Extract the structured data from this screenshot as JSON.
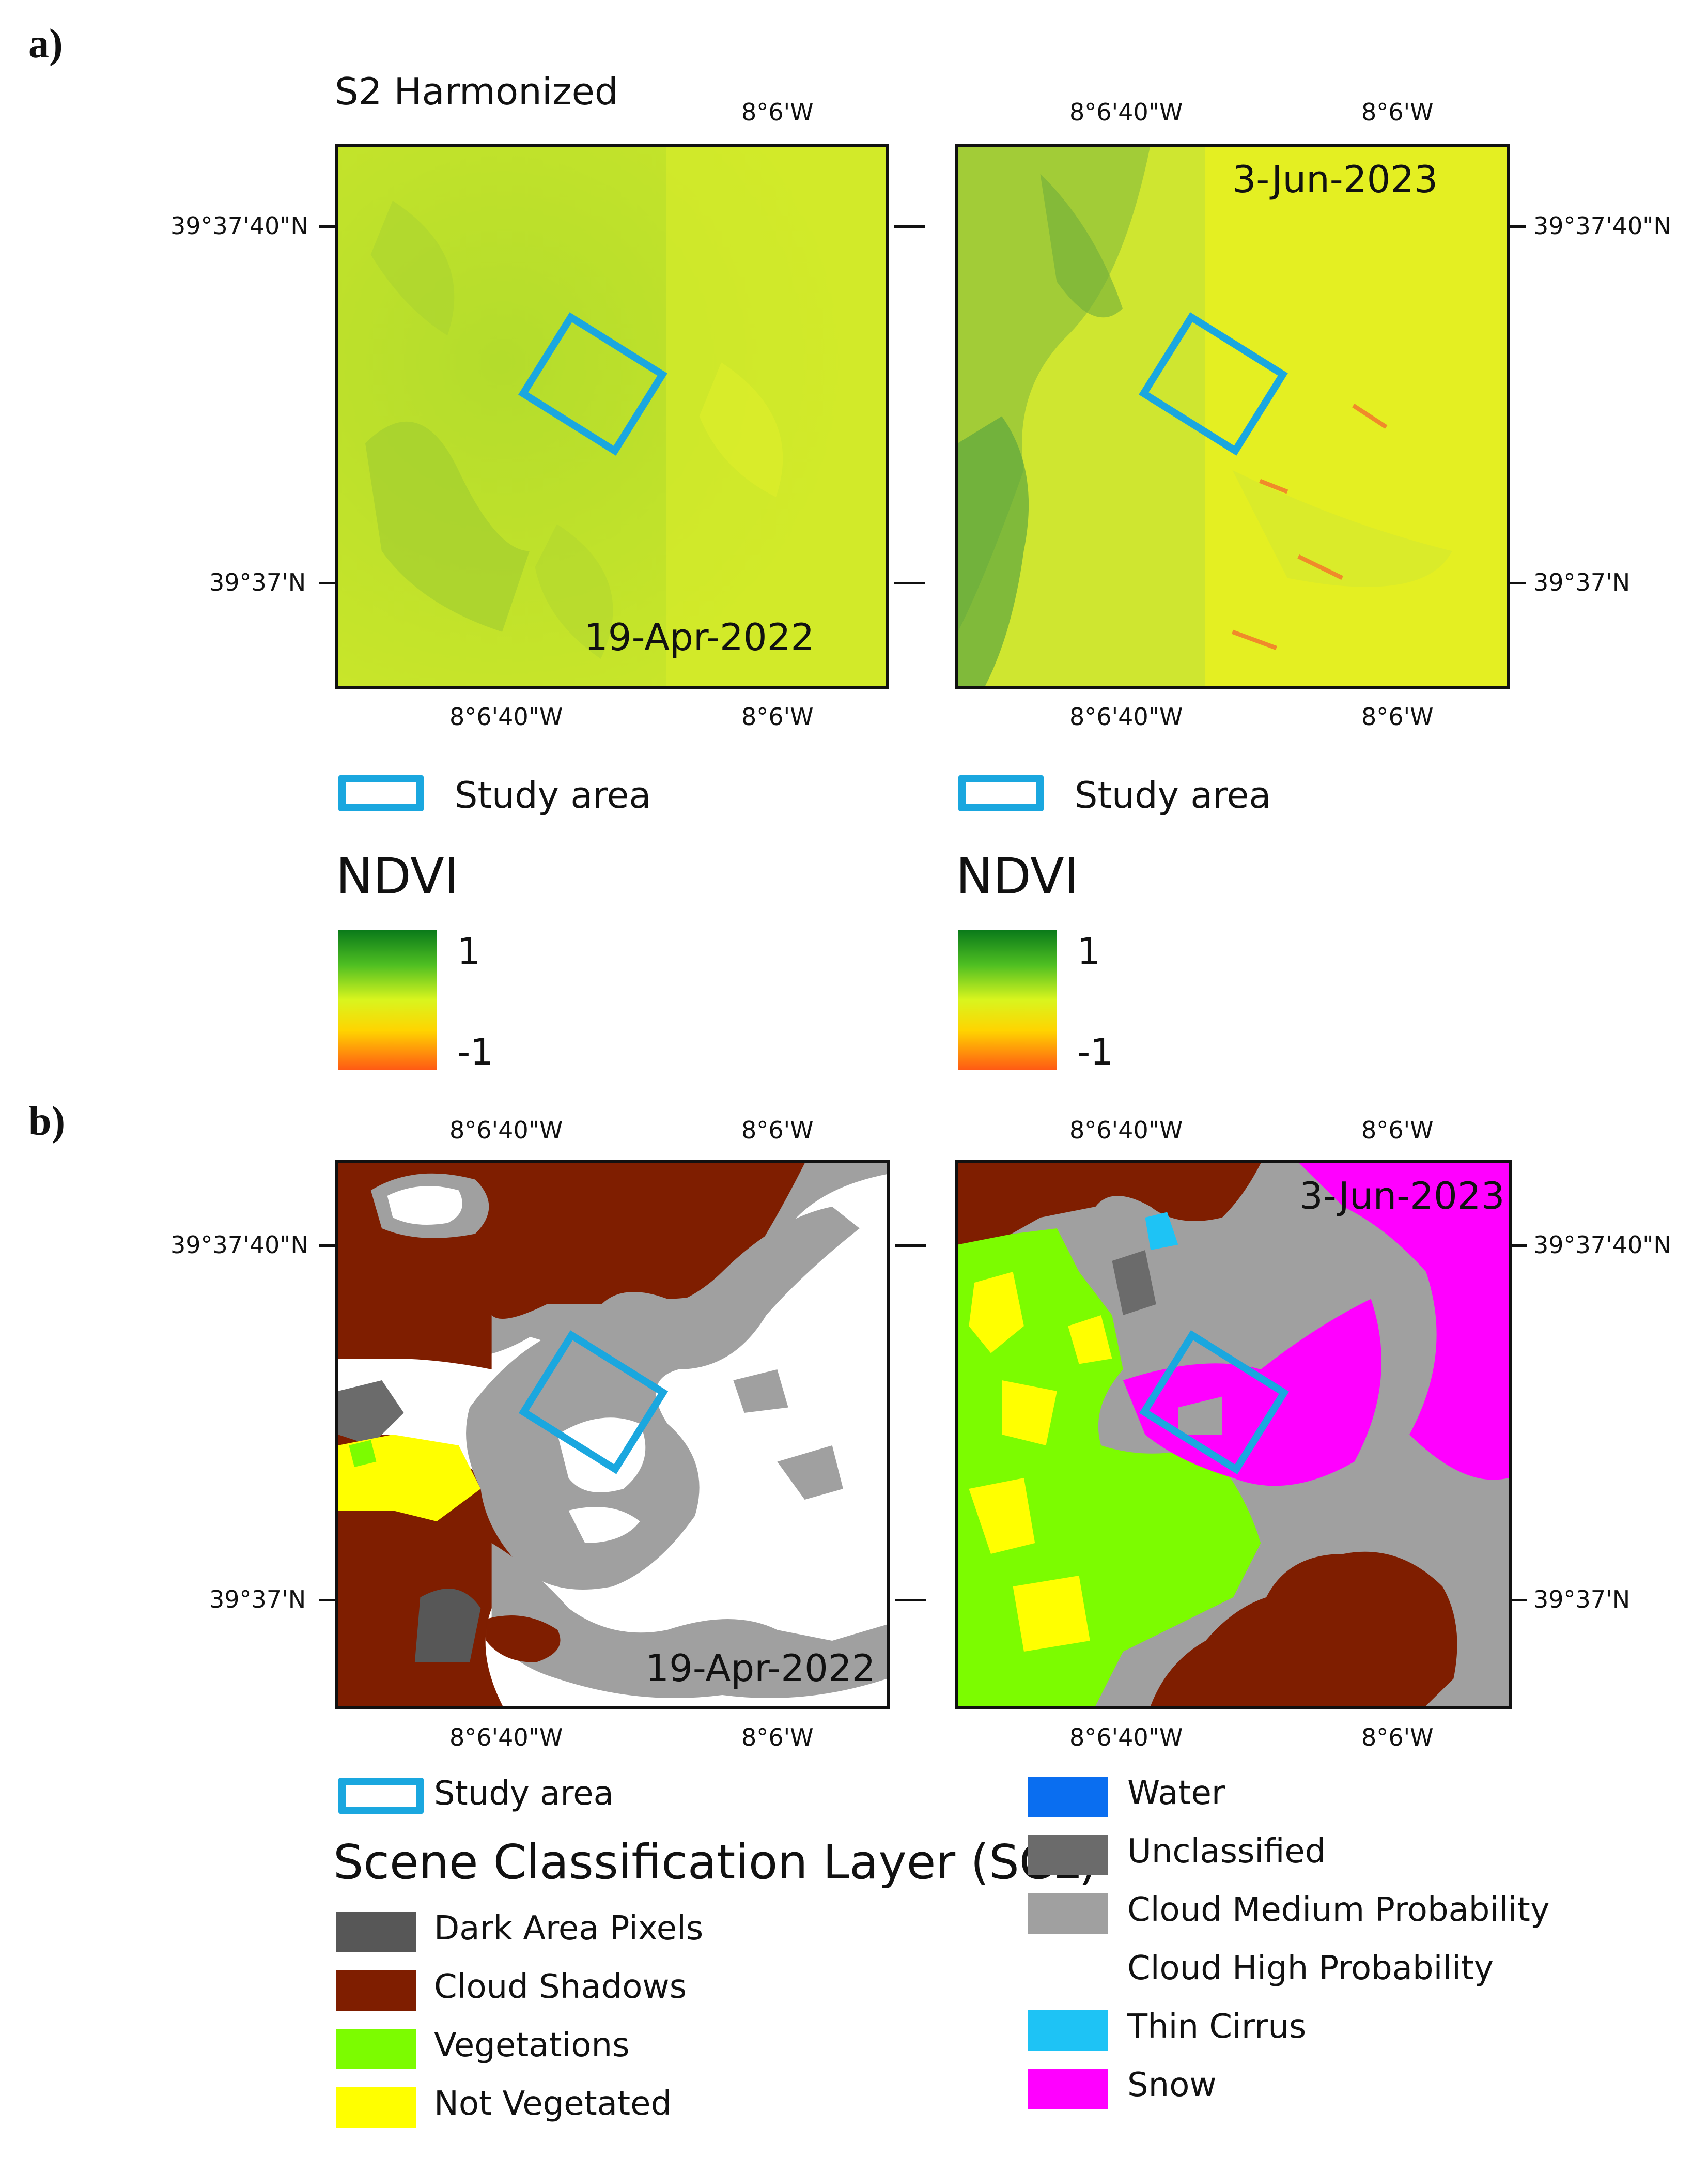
{
  "panel_a": {
    "label": "a)",
    "title": "S2 Harmonized",
    "left_map": {
      "date": "19-Apr-2022",
      "top_lon_ticks": [
        "8°6'W"
      ],
      "bottom_lon_ticks": [
        "8°6'40\"W",
        "8°6'W"
      ],
      "left_lat_ticks": [
        "39°37'40\"N",
        "39°37'N"
      ]
    },
    "right_map": {
      "date": "3-Jun-2023",
      "top_lon_ticks": [
        "8°6'40\"W",
        "8°6'W"
      ],
      "bottom_lon_ticks": [
        "8°6'40\"W",
        "8°6'W"
      ],
      "right_lat_ticks": [
        "39°37'40\"N",
        "39°37'N"
      ]
    },
    "legend": {
      "study_area": "Study area",
      "ndvi_title": "NDVI",
      "ndvi_max": "1",
      "ndvi_min": "-1"
    }
  },
  "panel_b": {
    "label": "b)",
    "left_map": {
      "date": "19-Apr-2022",
      "top_lon_ticks": [
        "8°6'40\"W",
        "8°6'W"
      ],
      "bottom_lon_ticks": [
        "8°6'40\"W",
        "8°6'W"
      ],
      "left_lat_ticks": [
        "39°37'40\"N",
        "39°37'N"
      ]
    },
    "right_map": {
      "date": "3-Jun-2023",
      "top_lon_ticks": [
        "8°6'40\"W",
        "8°6'W"
      ],
      "bottom_lon_ticks": [
        "8°6'40\"W",
        "8°6'W"
      ],
      "right_lat_ticks": [
        "39°37'40\"N",
        "39°37'N"
      ]
    },
    "legend": {
      "study_area": "Study area",
      "scl_title": "Scene Classification Layer (SCL)",
      "classes_left": [
        {
          "label": "Dark Area Pixels",
          "color": "#575757"
        },
        {
          "label": "Cloud Shadows",
          "color": "#7f1e00"
        },
        {
          "label": "Vegetations",
          "color": "#7cfc00"
        },
        {
          "label": "Not Vegetated",
          "color": "#ffff00"
        }
      ],
      "classes_right": [
        {
          "label": "Water",
          "color": "#0a6ef0"
        },
        {
          "label": "Unclassified",
          "color": "#6b6b6b"
        },
        {
          "label": "Cloud Medium Probability",
          "color": "#a0a0a0"
        },
        {
          "label": "Cloud High Probability",
          "color": "#ffffff"
        },
        {
          "label": "Thin Cirrus",
          "color": "#1ec3f5"
        },
        {
          "label": "Snow",
          "color": "#ff00ff"
        }
      ]
    }
  },
  "colors": {
    "study_area": "#1aa7df",
    "ndvi_ramp": [
      "#0a7a1a",
      "#4fbf22",
      "#d9f51e",
      "#ffd400",
      "#ff5a14"
    ]
  }
}
